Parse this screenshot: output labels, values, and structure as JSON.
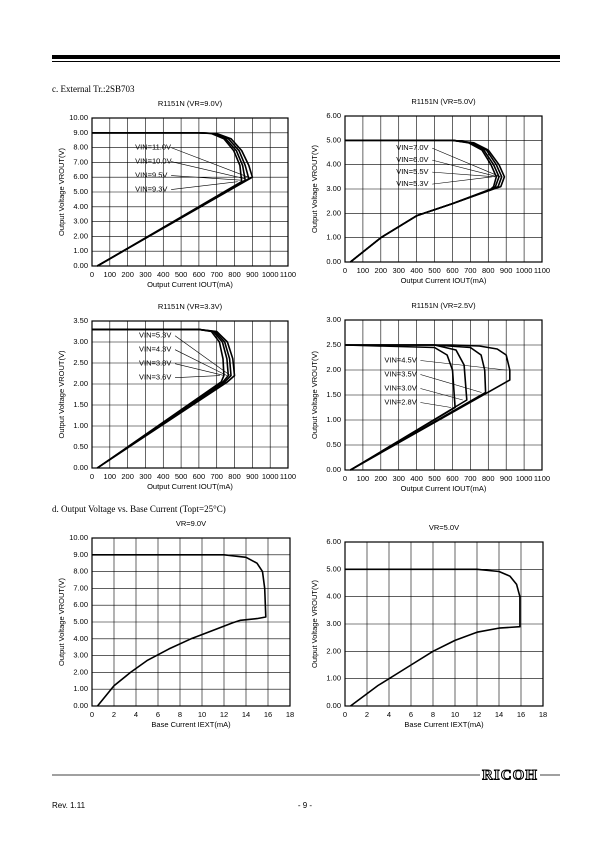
{
  "section_c": "c. External Tr.:2SB703",
  "section_d": "d. Output Voltage vs. Base Current (Topt=25°C)",
  "footer": {
    "logo": "RICOH",
    "rev": "Rev. 1.11",
    "page": "- 9 -"
  },
  "chart_data": [
    {
      "type": "line",
      "title": "R1151N  (VR=9.0V)",
      "x_label": "Output Current IOUT(mA)",
      "y_label": "Output Voltage VROUT(V)",
      "xlim": [
        0,
        1100
      ],
      "xticks": [
        0,
        100,
        200,
        300,
        400,
        500,
        600,
        700,
        800,
        900,
        1000,
        1100
      ],
      "ylim": [
        0,
        10
      ],
      "yticks": [
        {
          "value": 0,
          "label": "0.00"
        },
        {
          "value": 1,
          "label": "1.00"
        },
        {
          "value": 2,
          "label": "2.00"
        },
        {
          "value": 3,
          "label": "3.00"
        },
        {
          "value": 4,
          "label": "4.00"
        },
        {
          "value": 5,
          "label": "5.00"
        },
        {
          "value": 6,
          "label": "6.00"
        },
        {
          "value": 7,
          "label": "7.00"
        },
        {
          "value": 8,
          "label": "8.00"
        },
        {
          "value": 9,
          "label": "9.00"
        },
        {
          "value": 10,
          "label": "10.00"
        }
      ],
      "grid": true,
      "series": [
        {
          "name": "VIN=11.0V",
          "color": "#000000",
          "x": [
            0,
            600,
            700,
            780,
            840,
            880,
            900,
            30
          ],
          "values": [
            9,
            9,
            8.95,
            8.6,
            7.8,
            6.8,
            6.0,
            0
          ]
        },
        {
          "name": "VIN=10.0V",
          "color": "#000000",
          "x": [
            0,
            600,
            690,
            765,
            825,
            860,
            880,
            30
          ],
          "values": [
            9,
            9,
            8.95,
            8.6,
            7.8,
            6.8,
            5.9,
            0
          ]
        },
        {
          "name": "VIN=9.5V",
          "color": "#000000",
          "x": [
            0,
            600,
            680,
            750,
            810,
            845,
            860,
            30
          ],
          "values": [
            9,
            9,
            8.95,
            8.6,
            7.8,
            6.8,
            5.8,
            0
          ]
        },
        {
          "name": "VIN=9.3V",
          "color": "#000000",
          "x": [
            0,
            600,
            670,
            740,
            795,
            830,
            840,
            30
          ],
          "values": [
            9,
            9,
            8.95,
            8.6,
            7.8,
            6.8,
            5.7,
            0
          ]
        }
      ]
    },
    {
      "type": "line",
      "title": "R1151N  (VR=5.0V)",
      "x_label": "Output Current IOUT(mA)",
      "y_label": "Output Voltage VROUT(V)",
      "xlim": [
        0,
        1100
      ],
      "xticks": [
        0,
        100,
        200,
        300,
        400,
        500,
        600,
        700,
        800,
        900,
        1000,
        1100
      ],
      "ylim": [
        0,
        6
      ],
      "yticks": [
        {
          "value": 0,
          "label": "0.00"
        },
        {
          "value": 1,
          "label": "1.00"
        },
        {
          "value": 2,
          "label": "2.00"
        },
        {
          "value": 3,
          "label": "3.00"
        },
        {
          "value": 4,
          "label": "4.00"
        },
        {
          "value": 5,
          "label": "5.00"
        },
        {
          "value": 6,
          "label": "6.00"
        }
      ],
      "grid": true,
      "series": [
        {
          "name": "VIN=7.0V",
          "color": "#000000",
          "x": [
            0,
            600,
            720,
            800,
            860,
            890,
            870,
            830,
            600,
            400,
            200,
            30
          ],
          "values": [
            5,
            5,
            4.9,
            4.6,
            4.0,
            3.5,
            3.1,
            3.0,
            2.4,
            1.9,
            1.0,
            0
          ]
        },
        {
          "name": "VIN=6.0V",
          "color": "#000000",
          "x": [
            0,
            600,
            710,
            790,
            845,
            875,
            855,
            825,
            600,
            400,
            200,
            30
          ],
          "values": [
            5,
            5,
            4.9,
            4.6,
            4.0,
            3.5,
            3.1,
            3.0,
            2.4,
            1.9,
            1.0,
            0
          ]
        },
        {
          "name": "VIN=5.5V",
          "color": "#000000",
          "x": [
            0,
            600,
            700,
            775,
            830,
            860,
            840,
            820,
            600,
            400,
            200,
            30
          ],
          "values": [
            5,
            5,
            4.9,
            4.6,
            4.0,
            3.5,
            3.1,
            3.0,
            2.4,
            1.9,
            1.0,
            0
          ]
        },
        {
          "name": "VIN=5.3V",
          "color": "#000000",
          "x": [
            0,
            600,
            690,
            765,
            815,
            845,
            830,
            815,
            600,
            400,
            200,
            30
          ],
          "values": [
            5,
            5,
            4.9,
            4.6,
            4.0,
            3.5,
            3.1,
            3.0,
            2.4,
            1.9,
            1.0,
            0
          ]
        }
      ]
    },
    {
      "type": "line",
      "title": "R1151N  (VR=3.3V)",
      "x_label": "Output Current IOUT(mA)",
      "y_label": "Output Voltage VROUT(V)",
      "xlim": [
        0,
        1100
      ],
      "xticks": [
        0,
        100,
        200,
        300,
        400,
        500,
        600,
        700,
        800,
        900,
        1000,
        1100
      ],
      "ylim": [
        0,
        3.5
      ],
      "yticks": [
        {
          "value": 0,
          "label": "0.00"
        },
        {
          "value": 0.5,
          "label": "0.50"
        },
        {
          "value": 1,
          "label": "1.00"
        },
        {
          "value": 1.5,
          "label": "1.50"
        },
        {
          "value": 2,
          "label": "2.00"
        },
        {
          "value": 2.5,
          "label": "2.50"
        },
        {
          "value": 3,
          "label": "3.00"
        },
        {
          "value": 3.5,
          "label": "3.50"
        }
      ],
      "grid": true,
      "series": [
        {
          "name": "VIN=5.3V",
          "color": "#000000",
          "x": [
            0,
            600,
            700,
            760,
            790,
            800,
            760,
            30
          ],
          "values": [
            3.3,
            3.3,
            3.25,
            3.0,
            2.6,
            2.2,
            2.05,
            0
          ]
        },
        {
          "name": "VIN=4.3V",
          "color": "#000000",
          "x": [
            0,
            600,
            690,
            745,
            772,
            780,
            745,
            30
          ],
          "values": [
            3.3,
            3.3,
            3.25,
            3.0,
            2.6,
            2.2,
            2.05,
            0
          ]
        },
        {
          "name": "VIN=3.8V",
          "color": "#000000",
          "x": [
            0,
            600,
            680,
            732,
            757,
            765,
            735,
            30
          ],
          "values": [
            3.3,
            3.3,
            3.25,
            3.0,
            2.6,
            2.2,
            2.05,
            0
          ]
        },
        {
          "name": "VIN=3.6V",
          "color": "#000000",
          "x": [
            0,
            600,
            670,
            715,
            735,
            740,
            725,
            30
          ],
          "values": [
            3.3,
            3.3,
            3.25,
            3.0,
            2.6,
            2.2,
            2.05,
            0
          ]
        }
      ]
    },
    {
      "type": "line",
      "title": "R1151N  (VR=2.5V)",
      "x_label": "Output Current IOUT(mA)",
      "y_label": "Output Voltage VROUT(V)",
      "xlim": [
        0,
        1100
      ],
      "xticks": [
        0,
        100,
        200,
        300,
        400,
        500,
        600,
        700,
        800,
        900,
        1000,
        1100
      ],
      "ylim": [
        0,
        3
      ],
      "yticks": [
        {
          "value": 0,
          "label": "0.00"
        },
        {
          "value": 0.5,
          "label": "0.50"
        },
        {
          "value": 1,
          "label": "1.00"
        },
        {
          "value": 1.5,
          "label": "1.50"
        },
        {
          "value": 2,
          "label": "2.00"
        },
        {
          "value": 2.5,
          "label": "2.50"
        },
        {
          "value": 3,
          "label": "3.00"
        }
      ],
      "grid": true,
      "series": [
        {
          "name": "VIN=4.5V",
          "color": "#000000",
          "x": [
            0,
            600,
            750,
            850,
            900,
            920,
            920,
            30
          ],
          "values": [
            2.5,
            2.5,
            2.48,
            2.42,
            2.3,
            2.0,
            1.8,
            0
          ]
        },
        {
          "name": "VIN=3.5V",
          "color": "#000000",
          "x": [
            0,
            500,
            700,
            760,
            780,
            785,
            30
          ],
          "values": [
            2.5,
            2.5,
            2.45,
            2.3,
            2.0,
            1.55,
            0
          ]
        },
        {
          "name": "VIN=3.0V",
          "color": "#000000",
          "x": [
            0,
            500,
            620,
            665,
            680,
            30
          ],
          "values": [
            2.5,
            2.5,
            2.4,
            2.1,
            1.4,
            0
          ]
        },
        {
          "name": "VIN=2.8V",
          "color": "#000000",
          "x": [
            0,
            500,
            570,
            600,
            615,
            30
          ],
          "values": [
            2.5,
            2.45,
            2.3,
            2.0,
            1.25,
            0
          ]
        }
      ]
    },
    {
      "type": "line",
      "title": "VR=9.0V",
      "x_label": "Base Current IEXT(mA)",
      "y_label": "Output Voltage VROUT(V)",
      "xlim": [
        0,
        18
      ],
      "xticks": [
        0,
        2,
        4,
        6,
        8,
        10,
        12,
        14,
        16,
        18
      ],
      "ylim": [
        0,
        10
      ],
      "yticks": [
        {
          "value": 0,
          "label": "0.00"
        },
        {
          "value": 1,
          "label": "1.00"
        },
        {
          "value": 2,
          "label": "2.00"
        },
        {
          "value": 3,
          "label": "3.00"
        },
        {
          "value": 4,
          "label": "4.00"
        },
        {
          "value": 5,
          "label": "5.00"
        },
        {
          "value": 6,
          "label": "6.00"
        },
        {
          "value": 7,
          "label": "7.00"
        },
        {
          "value": 8,
          "label": "8.00"
        },
        {
          "value": 9,
          "label": "9.00"
        },
        {
          "value": 10,
          "label": "10.00"
        }
      ],
      "grid": true,
      "series": [
        {
          "color": "#000000",
          "x": [
            0,
            12,
            14,
            15,
            15.5,
            15.7,
            15.8,
            15,
            13.5,
            12.8,
            11,
            9,
            7,
            5,
            3.5,
            2,
            0.5
          ],
          "values": [
            9,
            9,
            8.85,
            8.5,
            8.0,
            7.0,
            5.3,
            5.2,
            5.1,
            4.95,
            4.5,
            4.0,
            3.4,
            2.7,
            2.0,
            1.2,
            0
          ]
        }
      ]
    },
    {
      "type": "line",
      "title": "VR=5.0V",
      "x_label": "Base Current IEXT(mA)",
      "y_label": "Output Voltage VROUT(V)",
      "xlim": [
        0,
        18
      ],
      "xticks": [
        0,
        2,
        4,
        6,
        8,
        10,
        12,
        14,
        16,
        18
      ],
      "ylim": [
        0,
        6
      ],
      "yticks": [
        {
          "value": 0,
          "label": "0.00"
        },
        {
          "value": 1,
          "label": "1.00"
        },
        {
          "value": 2,
          "label": "2.00"
        },
        {
          "value": 3,
          "label": "3.00"
        },
        {
          "value": 4,
          "label": "4.00"
        },
        {
          "value": 5,
          "label": "5.00"
        },
        {
          "value": 6,
          "label": "6.00"
        }
      ],
      "grid": true,
      "series": [
        {
          "color": "#000000",
          "x": [
            0,
            12,
            14,
            15,
            15.6,
            15.9,
            15.9,
            14,
            12,
            10,
            8,
            6,
            3,
            0.5
          ],
          "values": [
            5,
            5,
            4.92,
            4.75,
            4.45,
            4.0,
            2.9,
            2.85,
            2.7,
            2.4,
            2.0,
            1.5,
            0.75,
            0
          ]
        }
      ]
    }
  ]
}
